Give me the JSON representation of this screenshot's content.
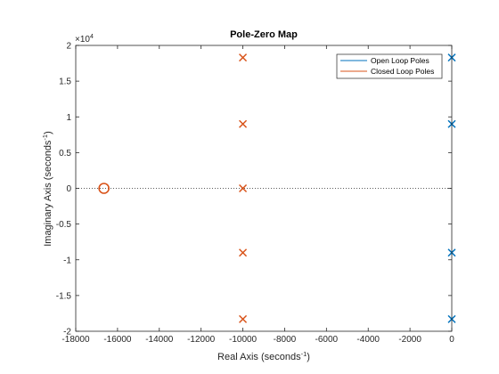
{
  "chart_data": {
    "type": "scatter",
    "title": "Pole-Zero Map",
    "xlabel": "Real Axis (seconds",
    "ylabel": "Imaginary Axis (seconds",
    "axis_label_exponent": "-1",
    "y_multiplier": "×10",
    "y_multiplier_exponent": "4",
    "xlim": [
      -18000,
      0
    ],
    "ylim": [
      -20000,
      20000
    ],
    "x_ticks": [
      -18000,
      -16000,
      -14000,
      -12000,
      -10000,
      -8000,
      -6000,
      -4000,
      -2000,
      0
    ],
    "x_tick_labels": [
      "-18000",
      "-16000",
      "-14000",
      "-12000",
      "-10000",
      "-8000",
      "-6000",
      "-4000",
      "-2000",
      "0"
    ],
    "y_ticks": [
      -20000,
      -15000,
      -10000,
      -5000,
      0,
      5000,
      10000,
      15000,
      20000
    ],
    "y_tick_labels": [
      "-2",
      "-1.5",
      "-1",
      "-0.5",
      "0",
      "0.5",
      "1",
      "1.5",
      "2"
    ],
    "grid": false,
    "legend_position": "top-right",
    "series": [
      {
        "name": "Open Loop Poles",
        "color": "#0072BD",
        "marker": "x",
        "points": [
          {
            "x": 0,
            "y": 18300
          },
          {
            "x": 0,
            "y": 9000
          },
          {
            "x": 0,
            "y": -9000
          },
          {
            "x": 0,
            "y": -18300
          }
        ]
      },
      {
        "name": "Closed Loop Poles",
        "color": "#D95319",
        "marker": "x",
        "points": [
          {
            "x": -10000,
            "y": 18300
          },
          {
            "x": -10000,
            "y": 9000
          },
          {
            "x": -10000,
            "y": 0
          },
          {
            "x": -10000,
            "y": -9000
          },
          {
            "x": -10000,
            "y": -18300
          }
        ],
        "zeros": [
          {
            "x": -16650,
            "y": 0
          }
        ]
      }
    ]
  }
}
